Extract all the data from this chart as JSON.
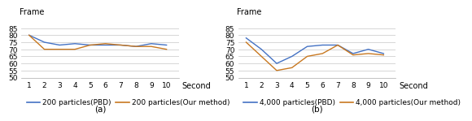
{
  "x": [
    1,
    2,
    3,
    4,
    5,
    6,
    7,
    8,
    9,
    10
  ],
  "chart_a": {
    "pbd": [
      80,
      75,
      73,
      74,
      73,
      73,
      73,
      72,
      74,
      73
    ],
    "our_method": [
      80,
      70,
      70,
      70,
      73,
      74,
      73,
      72,
      72,
      70
    ],
    "label_pbd": "200 particles(PBD)",
    "label_our": "200 particles(Our method)",
    "subtitle": "(a)"
  },
  "chart_b": {
    "pbd": [
      78,
      70,
      60,
      65,
      72,
      73,
      73,
      67,
      70,
      67
    ],
    "our_method": [
      75,
      65,
      55,
      57,
      65,
      67,
      73,
      66,
      67,
      66
    ],
    "label_pbd": "4,000 particles(PBD)",
    "label_our": "4,000 particles(Our method)",
    "subtitle": "(b)"
  },
  "ylabel": "Frame",
  "xlabel": "Second",
  "ylim": [
    50,
    87
  ],
  "yticks": [
    50,
    55,
    60,
    65,
    70,
    75,
    80,
    85
  ],
  "color_pbd": "#4472c4",
  "color_our": "#c87820",
  "bg_color": "#ffffff",
  "grid_color": "#d0d0d0",
  "tick_fontsize": 6.5,
  "label_fontsize": 7,
  "legend_fontsize": 6.5,
  "subtitle_fontsize": 7.5
}
